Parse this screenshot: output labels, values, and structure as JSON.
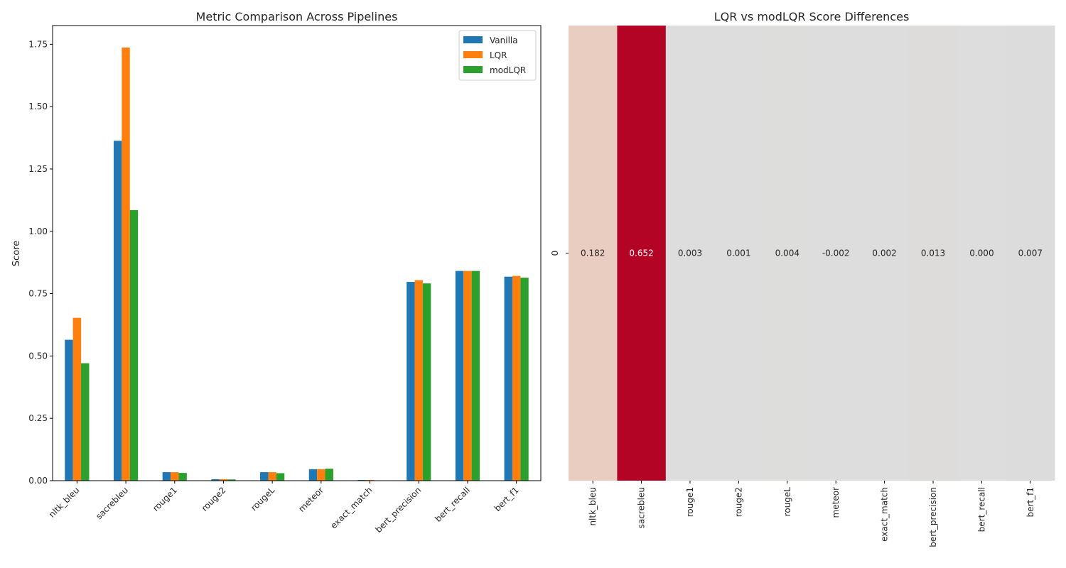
{
  "chart_data": [
    {
      "type": "bar",
      "title": "Metric Comparison Across Pipelines",
      "xlabel": "",
      "ylabel": "Score",
      "ylim": [
        0,
        1.825
      ],
      "yticks": [
        "0.00",
        "0.25",
        "0.50",
        "0.75",
        "1.00",
        "1.25",
        "1.50",
        "1.75"
      ],
      "grid": false,
      "legend_position": "top-right",
      "categories": [
        "nltk_bleu",
        "sacrebleu",
        "rouge1",
        "rouge2",
        "rougeL",
        "meteor",
        "exact_match",
        "bert_precision",
        "bert_recall",
        "bert_f1"
      ],
      "series": [
        {
          "name": "Vanilla",
          "color": "#1f77b4",
          "values": [
            0.565,
            1.363,
            0.034,
            0.006,
            0.034,
            0.046,
            0.003,
            0.797,
            0.841,
            0.818
          ]
        },
        {
          "name": "LQR",
          "color": "#ff7f0e",
          "values": [
            0.653,
            1.737,
            0.034,
            0.006,
            0.034,
            0.046,
            0.003,
            0.804,
            0.841,
            0.821
          ]
        },
        {
          "name": "modLQR",
          "color": "#2ca02c",
          "values": [
            0.471,
            1.085,
            0.031,
            0.005,
            0.03,
            0.048,
            0.001,
            0.791,
            0.841,
            0.814
          ]
        }
      ]
    },
    {
      "type": "heatmap",
      "title": "LQR vs modLQR Score Differences",
      "xlabel": "",
      "ylabel": "",
      "row_labels": [
        "0"
      ],
      "categories": [
        "nltk_bleu",
        "sacrebleu",
        "rouge1",
        "rouge2",
        "rougeL",
        "meteor",
        "exact_match",
        "bert_precision",
        "bert_recall",
        "bert_f1"
      ],
      "values": [
        0.182,
        0.652,
        0.003,
        0.001,
        0.004,
        -0.002,
        0.002,
        0.013,
        0.0,
        0.007
      ],
      "cell_labels": [
        "0.182",
        "0.652",
        "0.003",
        "0.001",
        "0.004",
        "-0.002",
        "0.002",
        "0.013",
        "0.000",
        "0.007"
      ],
      "colormap": "coolwarm",
      "colorbar": false
    }
  ]
}
